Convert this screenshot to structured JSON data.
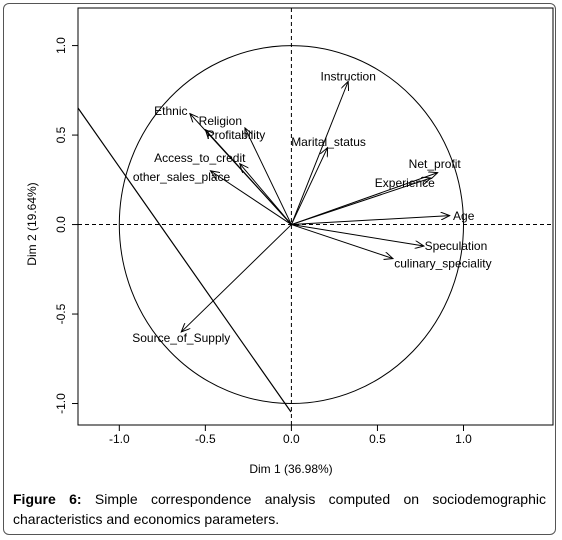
{
  "chart_data": {
    "type": "vector",
    "xlabel": "Dim 1 (36.98%)",
    "ylabel": "Dim 2 (19.64%)",
    "labels": [
      "Instruction",
      "Ethnic",
      "Religion",
      "Profitability",
      "Access_to_credit",
      "other_sales_place",
      "Marital_status",
      "Net_profit",
      "Experience",
      "Age",
      "Speculation",
      "culinary_speciality",
      "Source_of_Supply"
    ],
    "x": [
      0.33,
      -0.59,
      -0.5,
      -0.27,
      -0.3,
      -0.47,
      0.21,
      0.85,
      0.81,
      0.92,
      0.77,
      0.59,
      -0.64
    ],
    "values": [
      0.8,
      0.62,
      0.53,
      0.54,
      0.34,
      0.3,
      0.43,
      0.29,
      0.26,
      0.05,
      -0.12,
      -0.19,
      -0.6
    ],
    "color": "#000000",
    "xlim": [
      -1.24,
      1.52
    ],
    "ylim": [
      -1.12,
      1.21
    ],
    "xticks": [
      {
        "value": -1,
        "label": "-1.0"
      },
      {
        "value": -0.5,
        "label": "-0.5"
      },
      {
        "value": 0,
        "label": "0.0"
      },
      {
        "value": 0.5,
        "label": "0.5"
      },
      {
        "value": 1,
        "label": "1.0"
      }
    ],
    "yticks": [
      {
        "value": -1,
        "label": "-1.0"
      },
      {
        "value": -0.5,
        "label": "-0.5"
      },
      {
        "value": 0,
        "label": "0.0"
      },
      {
        "value": 0.5,
        "label": "0.5"
      },
      {
        "value": 1,
        "label": "1.0"
      }
    ]
  },
  "caption": {
    "label": "Figure 6:",
    "text": " Simple correspondence analysis computed on sociodemographic characteristics and economics parameters."
  }
}
